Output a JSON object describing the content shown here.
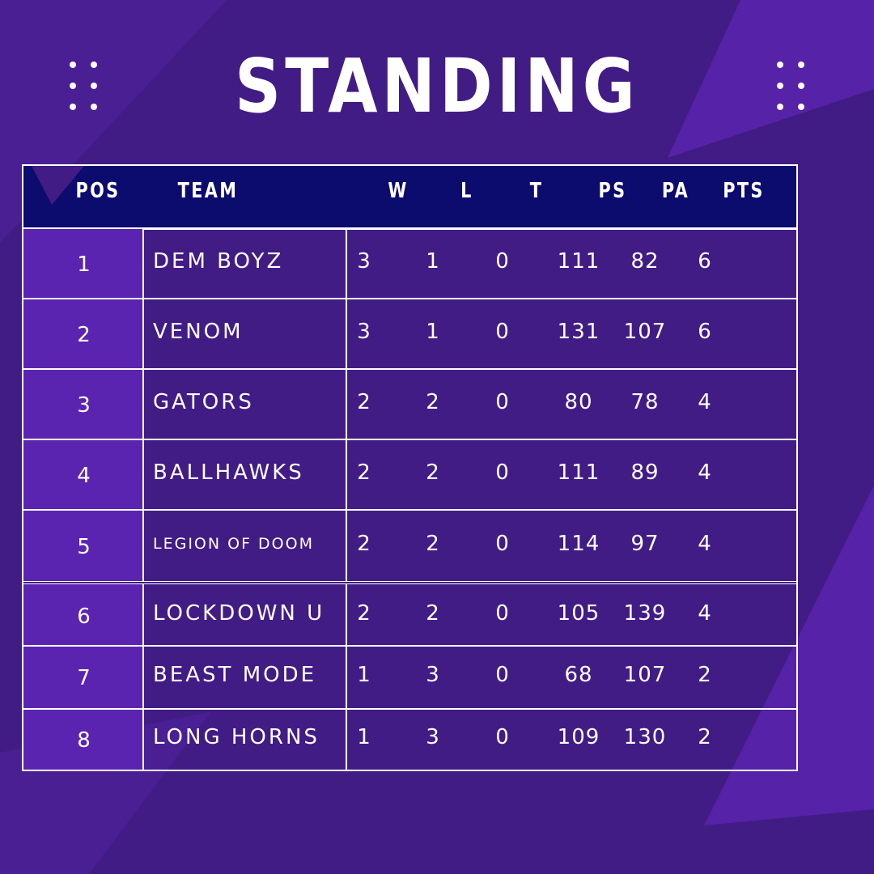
{
  "title": "STANDING",
  "colors": {
    "background": "#421c85",
    "header_bar": "#0c0b6e",
    "position_column": "#5b24b0",
    "accent_shape": "#5522a8",
    "text": "#ffffff"
  },
  "table": {
    "columns": [
      "POS",
      "TEAM",
      "W",
      "L",
      "T",
      "PS",
      "PA",
      "PTS"
    ],
    "rows": [
      {
        "pos": "1",
        "team": "DEM BOYZ",
        "w": "3",
        "l": "1",
        "t": "0",
        "ps": "111",
        "pa": "82",
        "pts": "6"
      },
      {
        "pos": "2",
        "team": "VENOM",
        "w": "3",
        "l": "1",
        "t": "0",
        "ps": "131",
        "pa": "107",
        "pts": "6"
      },
      {
        "pos": "3",
        "team": "GATORS",
        "w": "2",
        "l": "2",
        "t": "0",
        "ps": "80",
        "pa": "78",
        "pts": "4"
      },
      {
        "pos": "4",
        "team": "BALLHAWKS",
        "w": "2",
        "l": "2",
        "t": "0",
        "ps": "111",
        "pa": "89",
        "pts": "4"
      },
      {
        "pos": "5",
        "team": "LEGION OF DOOM",
        "w": "2",
        "l": "2",
        "t": "0",
        "ps": "114",
        "pa": "97",
        "pts": "4"
      },
      {
        "pos": "6",
        "team": "LOCKDOWN U",
        "w": "2",
        "l": "2",
        "t": "0",
        "ps": "105",
        "pa": "139",
        "pts": "4"
      },
      {
        "pos": "7",
        "team": "BEAST MODE",
        "w": "1",
        "l": "3",
        "t": "0",
        "ps": "68",
        "pa": "107",
        "pts": "2"
      },
      {
        "pos": "8",
        "team": "LONG HORNS",
        "w": "1",
        "l": "3",
        "t": "0",
        "ps": "109",
        "pa": "130",
        "pts": "2"
      }
    ]
  }
}
